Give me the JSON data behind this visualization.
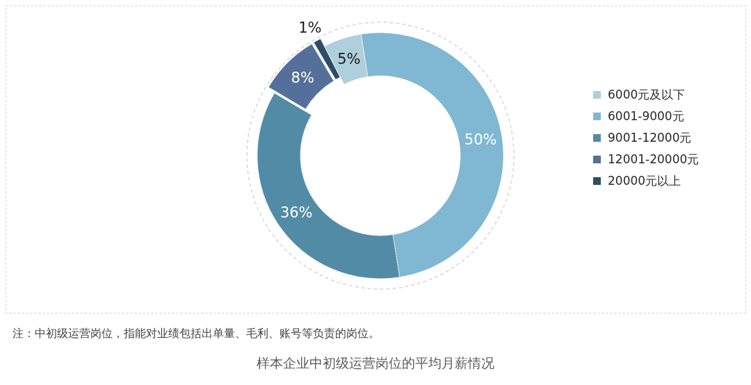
{
  "chart_data": {
    "type": "donut",
    "title": "样本企业中初级运营岗位的平均月薪情况",
    "annotations": [
      "注：中初级运营岗位，指能对业绩包括出单量、毛利、账号等负责的岗位。"
    ],
    "categories": [
      "6000元及以下",
      "6001-9000元",
      "9001-12000元",
      "12001-20000元",
      "20000元以上"
    ],
    "values": [
      5,
      50,
      36,
      8,
      1
    ],
    "value_labels": [
      "5%",
      "50%",
      "36%",
      "8%",
      "1%"
    ],
    "colors": [
      "#aecfdb",
      "#80b7d2",
      "#528ba6",
      "#54709a",
      "#2c4c69"
    ],
    "legend": "right"
  }
}
